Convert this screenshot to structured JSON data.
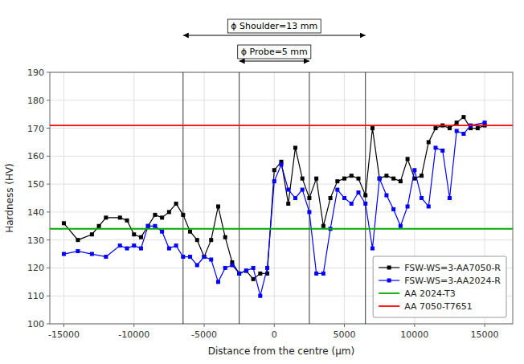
{
  "chart_data": {
    "type": "line",
    "xlabel": "Distance from the centre (μm)",
    "ylabel": "Hardness (HV)",
    "xlim": [
      -16000,
      17000
    ],
    "ylim": [
      100,
      190
    ],
    "xticks": [
      -15000,
      -10000,
      -5000,
      0,
      5000,
      10000,
      15000
    ],
    "yticks": [
      100,
      110,
      120,
      130,
      140,
      150,
      160,
      170,
      180,
      190
    ],
    "grid": true,
    "legend": "lower right",
    "series": [
      {
        "name": "FSW-WS=3-AA7050-R",
        "color": "#000000",
        "marker": "square",
        "x": [
          -15000,
          -14000,
          -13000,
          -12500,
          -12000,
          -11000,
          -10500,
          -10000,
          -9500,
          -9000,
          -8500,
          -8000,
          -7500,
          -7000,
          -6500,
          -6000,
          -5500,
          -5000,
          -4500,
          -4000,
          -3500,
          -3000,
          -2500,
          -2000,
          -1500,
          -1000,
          -500,
          0,
          500,
          1000,
          1500,
          2000,
          2500,
          3000,
          3500,
          4000,
          4500,
          5000,
          5500,
          6000,
          6500,
          7000,
          7500,
          8000,
          8500,
          9000,
          9500,
          10000,
          10500,
          11000,
          11500,
          12000,
          12500,
          13000,
          13500,
          14000,
          14500,
          15000
        ],
        "values": [
          136,
          130,
          132,
          135,
          138,
          138,
          137,
          132,
          131,
          135,
          139,
          138,
          140,
          143,
          139,
          133,
          130,
          124,
          130,
          142,
          131,
          122,
          118,
          119,
          116,
          118,
          118,
          155,
          158,
          143,
          163,
          152,
          145,
          152,
          135,
          145,
          151,
          152,
          153,
          152,
          146,
          170,
          152,
          153,
          152,
          151,
          159,
          152,
          153,
          165,
          170,
          171,
          170,
          172,
          174,
          170,
          170,
          171
        ]
      },
      {
        "name": "FSW-WS=3-AA2024-R",
        "color": "#0000FF",
        "marker": "square",
        "x": [
          -15000,
          -14000,
          -13000,
          -12000,
          -11000,
          -10500,
          -10000,
          -9500,
          -9000,
          -8500,
          -8000,
          -7500,
          -7000,
          -6500,
          -6000,
          -5500,
          -5000,
          -4500,
          -4000,
          -3500,
          -3000,
          -2500,
          -2000,
          -1500,
          -1000,
          -500,
          0,
          500,
          1000,
          1500,
          2000,
          2500,
          3000,
          3500,
          4000,
          4500,
          5000,
          5500,
          6000,
          6500,
          7000,
          7500,
          8000,
          8500,
          9000,
          9500,
          10000,
          10500,
          11000,
          11500,
          12000,
          12500,
          13000,
          13500,
          14000,
          15000
        ],
        "values": [
          125,
          126,
          125,
          124,
          128,
          127,
          128,
          127,
          135,
          135,
          133,
          127,
          128,
          124,
          124,
          121,
          124,
          123,
          115,
          120,
          121,
          118,
          119,
          120,
          110,
          120,
          151,
          157,
          148,
          145,
          148,
          140,
          118,
          118,
          134,
          148,
          145,
          143,
          147,
          143,
          127,
          152,
          146,
          141,
          135,
          142,
          155,
          145,
          142,
          163,
          162,
          145,
          169,
          168,
          171,
          172
        ]
      },
      {
        "name": "AA 2024-T3",
        "color": "#00AA00",
        "type": "hline",
        "values": [
          134
        ]
      },
      {
        "name": "AA 7050-T7651",
        "color": "#FF0000",
        "type": "hline",
        "values": [
          171
        ]
      }
    ],
    "annotations": [
      {
        "text": "ϕ Shoulder=13 mm",
        "x": [
          -6500,
          6500
        ]
      },
      {
        "text": "ϕ Probe=5 mm",
        "x": [
          -2500,
          2500
        ]
      }
    ]
  }
}
